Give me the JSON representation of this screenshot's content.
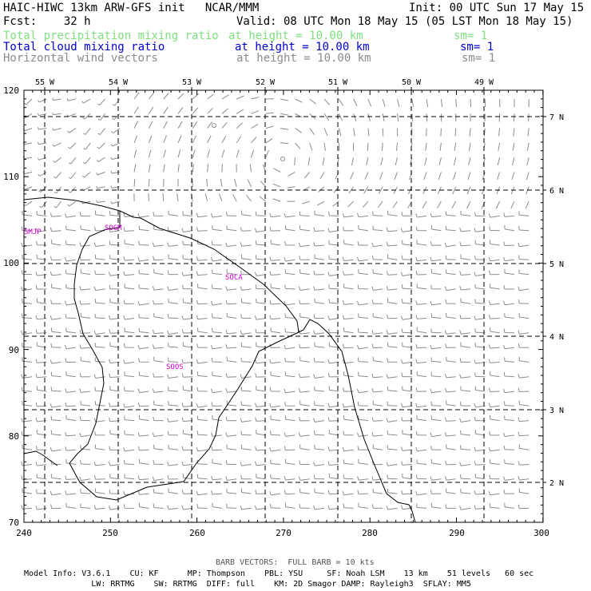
{
  "header": {
    "model_line": "HAIC-HIWC 13km ARW-GFS init   NCAR/MMM",
    "init_line": "Init: 00 UTC Sun 17 May 15",
    "fcst_line": "Fcst:    32 h",
    "valid_line": "Valid: 08 UTC Mon 18 May 15 (05 LST Mon 18 May 15)",
    "fields": [
      {
        "label": "Total precipitation mixing ratio",
        "height": "at height = 10.00 km",
        "sm": "sm= 1",
        "color": "#7fe07f"
      },
      {
        "label": "Total cloud mixing ratio",
        "height": "at height = 10.00 km",
        "sm": "sm= 1",
        "color": "#0000cc"
      },
      {
        "label": "Horizontal wind vectors",
        "height": "at height = 10.00 km",
        "sm": "sm= 1",
        "color": "#8c8c8c"
      }
    ]
  },
  "map": {
    "x_ticks": [
      "240",
      "250",
      "260",
      "270",
      "280",
      "290",
      "300"
    ],
    "y_ticks": [
      "70",
      "80",
      "90",
      "100",
      "110",
      "120"
    ],
    "lon_labels": [
      "55 W",
      "54 W",
      "53 W",
      "52 W",
      "51 W",
      "50 W",
      "49 W"
    ],
    "lat_labels": [
      "7 N",
      "6 N",
      "5 N",
      "4 N",
      "3 N",
      "2 N"
    ],
    "stations": [
      {
        "label": "SMJP",
        "color": "#cc00cc"
      },
      {
        "label": "SOGM",
        "color": "#cc00cc"
      },
      {
        "label": "SOCA",
        "color": "#cc00cc"
      },
      {
        "label": "SOOS",
        "color": "#cc00cc"
      }
    ],
    "vector_color": "#8c8c8c",
    "coast_color": "#000000"
  },
  "footer": {
    "barb_note": "BARB VECTORS:  FULL BARB = 10 kts",
    "model_info": [
      "Model Info: V3.6.1    CU: KF      MP: Thompson    PBL: YSU     SF: Noah LSM    13 km    51 levels   60 sec",
      "              LW: RRTMG    SW: RRTMG  DIFF: full    KM: 2D Smagor DAMP: Rayleigh3  SFLAY: MM5"
    ]
  }
}
